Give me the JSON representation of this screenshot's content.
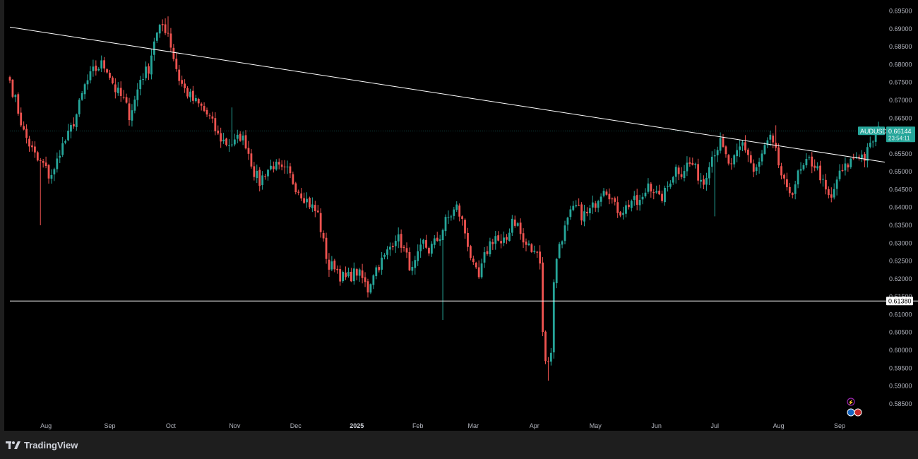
{
  "brand": {
    "name": "TradingView",
    "logo_icon": "tradingview-logo-icon"
  },
  "colors": {
    "up": "#26a69a",
    "down": "#ef5350",
    "background": "#000000",
    "line": "#ffffff"
  },
  "chart_data": {
    "type": "candlestick",
    "symbol": "AUDUSD",
    "last_price": "0.66144",
    "countdown": "23:54:11",
    "ylim": [
      0.583,
      0.6965
    ],
    "y_ticks": [
      "0.69500",
      "0.69000",
      "0.68500",
      "0.68000",
      "0.67500",
      "0.67000",
      "0.66500",
      "0.66000",
      "0.65500",
      "0.65000",
      "0.64500",
      "0.64000",
      "0.63500",
      "0.63000",
      "0.62500",
      "0.62000",
      "0.61500",
      "0.61000",
      "0.60500",
      "0.60000",
      "0.59500",
      "0.59000",
      "0.58500"
    ],
    "x_ticks": [
      {
        "label": "Aug",
        "index": 13,
        "bold": false
      },
      {
        "label": "Sep",
        "index": 36,
        "bold": false
      },
      {
        "label": "Oct",
        "index": 58,
        "bold": false
      },
      {
        "label": "Nov",
        "index": 81,
        "bold": false
      },
      {
        "label": "Dec",
        "index": 103,
        "bold": false
      },
      {
        "label": "2025",
        "index": 125,
        "bold": true
      },
      {
        "label": "Feb",
        "index": 147,
        "bold": false
      },
      {
        "label": "Mar",
        "index": 167,
        "bold": false
      },
      {
        "label": "Apr",
        "index": 189,
        "bold": false
      },
      {
        "label": "May",
        "index": 211,
        "bold": false
      },
      {
        "label": "Jun",
        "index": 233,
        "bold": false
      },
      {
        "label": "Jul",
        "index": 254,
        "bold": false
      },
      {
        "label": "Aug",
        "index": 277,
        "bold": false
      },
      {
        "label": "Sep",
        "index": 299,
        "bold": false
      }
    ],
    "horizontal_line": {
      "value": 0.6138,
      "label": "0.61380"
    },
    "trend_line": {
      "start": {
        "index": 0,
        "value": 0.6905
      },
      "end": {
        "index": 320,
        "value": 0.6521
      }
    },
    "close_anchors": [
      [
        0,
        0.6755
      ],
      [
        2,
        0.67
      ],
      [
        5,
        0.661
      ],
      [
        8,
        0.656
      ],
      [
        10,
        0.653
      ],
      [
        12,
        0.652
      ],
      [
        14,
        0.649
      ],
      [
        16,
        0.65
      ],
      [
        18,
        0.656
      ],
      [
        21,
        0.66
      ],
      [
        24,
        0.666
      ],
      [
        27,
        0.674
      ],
      [
        30,
        0.678
      ],
      [
        33,
        0.68
      ],
      [
        35,
        0.679
      ],
      [
        38,
        0.673
      ],
      [
        41,
        0.67
      ],
      [
        43,
        0.666
      ],
      [
        45,
        0.67
      ],
      [
        47,
        0.676
      ],
      [
        50,
        0.679
      ],
      [
        52,
        0.687
      ],
      [
        55,
        0.691
      ],
      [
        57,
        0.689
      ],
      [
        59,
        0.682
      ],
      [
        61,
        0.676
      ],
      [
        63,
        0.673
      ],
      [
        66,
        0.67
      ],
      [
        69,
        0.668
      ],
      [
        72,
        0.665
      ],
      [
        75,
        0.66
      ],
      [
        78,
        0.658
      ],
      [
        81,
        0.658
      ],
      [
        83,
        0.66
      ],
      [
        85,
        0.658
      ],
      [
        88,
        0.65
      ],
      [
        90,
        0.647
      ],
      [
        92,
        0.65
      ],
      [
        95,
        0.652
      ],
      [
        98,
        0.65
      ],
      [
        100,
        0.65
      ],
      [
        103,
        0.646
      ],
      [
        106,
        0.643
      ],
      [
        109,
        0.64
      ],
      [
        111,
        0.638
      ],
      [
        113,
        0.63
      ],
      [
        115,
        0.623
      ],
      [
        117,
        0.624
      ],
      [
        119,
        0.621
      ],
      [
        121,
        0.62
      ],
      [
        123,
        0.621
      ],
      [
        125,
        0.622
      ],
      [
        127,
        0.62
      ],
      [
        129,
        0.617
      ],
      [
        131,
        0.622
      ],
      [
        133,
        0.624
      ],
      [
        135,
        0.626
      ],
      [
        137,
        0.629
      ],
      [
        139,
        0.632
      ],
      [
        141,
        0.63
      ],
      [
        143,
        0.626
      ],
      [
        145,
        0.622
      ],
      [
        147,
        0.626
      ],
      [
        149,
        0.63
      ],
      [
        151,
        0.628
      ],
      [
        153,
        0.63
      ],
      [
        155,
        0.632
      ],
      [
        157,
        0.636
      ],
      [
        159,
        0.638
      ],
      [
        161,
        0.64
      ],
      [
        163,
        0.636
      ],
      [
        165,
        0.63
      ],
      [
        167,
        0.623
      ],
      [
        169,
        0.62
      ],
      [
        171,
        0.626
      ],
      [
        173,
        0.63
      ],
      [
        175,
        0.632
      ],
      [
        177,
        0.629
      ],
      [
        179,
        0.631
      ],
      [
        181,
        0.637
      ],
      [
        183,
        0.635
      ],
      [
        185,
        0.63
      ],
      [
        187,
        0.629
      ],
      [
        189,
        0.627
      ],
      [
        190,
        0.629
      ],
      [
        191,
        0.625
      ],
      [
        192,
        0.605
      ],
      [
        193,
        0.598
      ],
      [
        194,
        0.596
      ],
      [
        195,
        0.6
      ],
      [
        196,
        0.62
      ],
      [
        197,
        0.625
      ],
      [
        198,
        0.63
      ],
      [
        200,
        0.634
      ],
      [
        202,
        0.638
      ],
      [
        204,
        0.64
      ],
      [
        206,
        0.638
      ],
      [
        208,
        0.638
      ],
      [
        210,
        0.64
      ],
      [
        212,
        0.643
      ],
      [
        214,
        0.646
      ],
      [
        216,
        0.644
      ],
      [
        218,
        0.64
      ],
      [
        220,
        0.639
      ],
      [
        222,
        0.64
      ],
      [
        224,
        0.642
      ],
      [
        226,
        0.641
      ],
      [
        228,
        0.642
      ],
      [
        230,
        0.647
      ],
      [
        232,
        0.645
      ],
      [
        234,
        0.642
      ],
      [
        236,
        0.644
      ],
      [
        238,
        0.648
      ],
      [
        240,
        0.651
      ],
      [
        242,
        0.65
      ],
      [
        244,
        0.652
      ],
      [
        246,
        0.652
      ],
      [
        248,
        0.649
      ],
      [
        250,
        0.647
      ],
      [
        252,
        0.653
      ],
      [
        254,
        0.656
      ],
      [
        256,
        0.658
      ],
      [
        258,
        0.654
      ],
      [
        260,
        0.651
      ],
      [
        262,
        0.655
      ],
      [
        264,
        0.658
      ],
      [
        266,
        0.655
      ],
      [
        268,
        0.65
      ],
      [
        270,
        0.652
      ],
      [
        272,
        0.657
      ],
      [
        274,
        0.659
      ],
      [
        276,
        0.655
      ],
      [
        278,
        0.649
      ],
      [
        280,
        0.644
      ],
      [
        282,
        0.645
      ],
      [
        284,
        0.649
      ],
      [
        286,
        0.651
      ],
      [
        288,
        0.653
      ],
      [
        290,
        0.652
      ],
      [
        292,
        0.649
      ],
      [
        294,
        0.644
      ],
      [
        296,
        0.642
      ],
      [
        298,
        0.648
      ],
      [
        300,
        0.65
      ],
      [
        302,
        0.652
      ],
      [
        304,
        0.654
      ],
      [
        306,
        0.655
      ],
      [
        308,
        0.654
      ],
      [
        310,
        0.657
      ],
      [
        312,
        0.661
      ],
      [
        313,
        0.6614
      ]
    ],
    "low_spikes": [
      [
        11,
        0.635
      ],
      [
        156,
        0.6085
      ],
      [
        194,
        0.5915
      ],
      [
        254,
        0.6375
      ]
    ],
    "high_spikes": [
      [
        57,
        0.6935
      ],
      [
        80,
        0.668
      ],
      [
        276,
        0.663
      ],
      [
        313,
        0.664
      ]
    ]
  }
}
